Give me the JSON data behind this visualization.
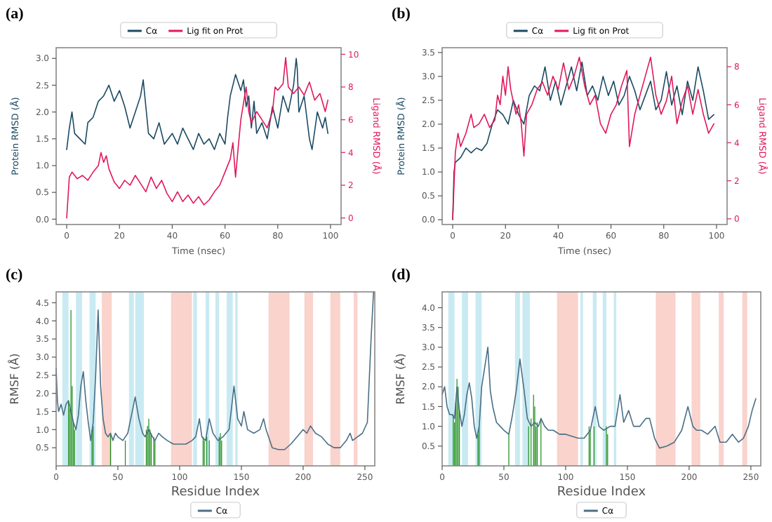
{
  "chart_data": [
    {
      "type": "line",
      "title": "(a)",
      "xlabel": "Time (nsec)",
      "ylabel": "Protein RMSD (Å)",
      "y2label": "Ligand RMSD (Å)",
      "legend": "top",
      "xlim": [
        -4,
        104
      ],
      "xticks": [
        0,
        20,
        40,
        60,
        80,
        100
      ],
      "ylim": [
        -0.1,
        3.2
      ],
      "yticks": [
        {
          "value": 0,
          "label": "0.0"
        },
        {
          "value": 0.5,
          "label": "0.5"
        },
        {
          "value": 1,
          "label": "1.0"
        },
        {
          "value": 1.5,
          "label": "1.5"
        },
        {
          "value": 2,
          "label": "2.0"
        },
        {
          "value": 2.5,
          "label": "2.5"
        },
        {
          "value": 3,
          "label": "3.0"
        }
      ],
      "y2lim": [
        -0.4,
        10.4
      ],
      "y2ticks": [
        0,
        2,
        4,
        6,
        8,
        10
      ],
      "series": [
        {
          "name": "Cα",
          "color": "#1b4a63",
          "x": [
            0,
            1,
            2,
            3,
            5,
            7,
            8,
            10,
            12,
            14,
            16,
            18,
            20,
            22,
            24,
            26,
            28,
            29,
            30,
            31,
            33,
            35,
            37,
            40,
            42,
            44,
            46,
            48,
            50,
            52,
            54,
            56,
            58,
            60,
            61,
            62,
            64,
            66,
            67,
            68,
            69,
            70,
            71,
            72,
            74,
            76,
            78,
            80,
            82,
            84,
            86,
            86.6,
            87,
            87.4,
            88,
            90,
            92,
            93,
            95,
            97,
            98,
            99
          ],
          "values": [
            1.3,
            1.7,
            2.0,
            1.6,
            1.5,
            1.4,
            1.8,
            1.9,
            2.2,
            2.3,
            2.5,
            2.2,
            2.4,
            2.1,
            1.7,
            2.0,
            2.3,
            2.6,
            2.1,
            1.6,
            1.5,
            1.8,
            1.4,
            1.6,
            1.4,
            1.7,
            1.5,
            1.3,
            1.6,
            1.4,
            1.5,
            1.3,
            1.6,
            1.4,
            1.9,
            2.3,
            2.7,
            2.4,
            2.6,
            2.1,
            2.3,
            1.7,
            2.2,
            1.6,
            1.8,
            1.5,
            2.1,
            1.7,
            2.3,
            2.0,
            2.5,
            2.8,
            3.0,
            2.8,
            2.0,
            2.3,
            1.5,
            1.3,
            2.0,
            1.7,
            1.9,
            1.6
          ]
        },
        {
          "name": "Lig fit on Prot",
          "color": "#e0195a",
          "axis": "y2",
          "x": [
            0,
            1,
            2,
            4,
            6,
            8,
            10,
            12,
            13,
            14,
            15,
            16,
            18,
            20,
            22,
            24,
            26,
            28,
            30,
            32,
            34,
            36,
            38,
            40,
            42,
            44,
            46,
            48,
            50,
            52,
            54,
            56,
            58,
            60,
            62,
            63,
            64,
            65,
            66,
            67,
            68,
            69,
            70,
            72,
            74,
            76,
            78,
            79,
            80,
            82,
            83,
            84,
            86,
            88,
            90,
            92,
            94,
            96,
            98,
            99
          ],
          "values": [
            0,
            2.5,
            2.8,
            2.4,
            2.6,
            2.3,
            2.8,
            3.2,
            4.0,
            3.4,
            3.8,
            3.0,
            2.2,
            1.8,
            2.3,
            2.0,
            2.6,
            2.1,
            1.6,
            2.5,
            1.8,
            2.3,
            1.5,
            1.0,
            1.6,
            1.0,
            1.4,
            0.9,
            1.3,
            0.8,
            1.1,
            1.6,
            2.0,
            2.8,
            3.6,
            4.6,
            2.5,
            4.3,
            6.0,
            7.0,
            8.0,
            6.5,
            5.8,
            6.5,
            6.0,
            5.5,
            6.5,
            8.0,
            7.8,
            8.2,
            9.8,
            8.0,
            7.6,
            8.0,
            7.5,
            8.3,
            7.2,
            7.6,
            6.5,
            7.2
          ]
        }
      ]
    },
    {
      "type": "line",
      "title": "(b)",
      "xlabel": "Time (nsec)",
      "ylabel": "Protein RMSD (Å)",
      "y2label": "Ligand RMSD (Å)",
      "legend": "top",
      "xlim": [
        -4,
        104
      ],
      "xticks": [
        0,
        20,
        40,
        60,
        80,
        100
      ],
      "ylim": [
        -0.1,
        3.6
      ],
      "yticks": [
        {
          "value": 0,
          "label": "0.0"
        },
        {
          "value": 0.5,
          "label": "0.5"
        },
        {
          "value": 1,
          "label": "1.0"
        },
        {
          "value": 1.5,
          "label": "1.5"
        },
        {
          "value": 2,
          "label": "2.0"
        },
        {
          "value": 2.5,
          "label": "2.5"
        },
        {
          "value": 3,
          "label": "3.0"
        },
        {
          "value": 3.5,
          "label": "3.5"
        }
      ],
      "y2lim": [
        -0.3,
        9
      ],
      "y2ticks": [
        0,
        2,
        4,
        6,
        8
      ],
      "series": [
        {
          "name": "Cα",
          "color": "#1b4a63",
          "x": [
            0,
            0.5,
            1,
            3,
            5,
            7,
            9,
            11,
            13,
            15,
            17,
            19,
            21,
            23,
            25,
            27,
            29,
            31,
            33,
            35,
            37,
            39,
            41,
            43,
            45,
            47,
            49,
            51,
            53,
            55,
            57,
            59,
            61,
            63,
            65,
            67,
            69,
            71,
            73,
            75,
            77,
            79,
            81,
            83,
            85,
            87,
            89,
            91,
            93,
            95,
            97,
            99
          ],
          "values": [
            0,
            1.0,
            1.2,
            1.3,
            1.5,
            1.4,
            1.5,
            1.45,
            1.6,
            2.0,
            2.3,
            2.2,
            2.0,
            2.5,
            2.2,
            2.0,
            2.6,
            2.8,
            2.7,
            3.2,
            2.5,
            2.9,
            2.4,
            2.8,
            3.2,
            2.7,
            3.3,
            2.6,
            2.8,
            2.5,
            3.0,
            2.6,
            2.9,
            2.4,
            2.6,
            3.0,
            2.7,
            2.3,
            2.6,
            2.9,
            2.3,
            2.5,
            3.1,
            2.4,
            2.8,
            2.2,
            2.9,
            2.5,
            3.2,
            2.7,
            2.1,
            2.2
          ]
        },
        {
          "name": "Lig fit on Prot",
          "color": "#e0195a",
          "axis": "y2",
          "x": [
            0,
            1,
            2,
            3,
            5,
            7,
            8,
            10,
            12,
            14,
            16,
            17,
            18,
            19,
            20,
            21,
            22,
            24,
            25,
            26,
            27,
            28,
            30,
            32,
            34,
            36,
            38,
            40,
            42,
            44,
            46,
            48,
            50,
            52,
            54,
            56,
            58,
            60,
            62,
            64,
            66,
            67,
            69,
            71,
            73,
            75,
            77,
            79,
            81,
            83,
            85,
            87,
            89,
            91,
            93,
            95,
            97,
            99
          ],
          "values": [
            0,
            3.5,
            4.5,
            3.8,
            4.5,
            5.5,
            4.8,
            5.0,
            5.5,
            4.8,
            5.2,
            6.5,
            6.0,
            7.5,
            6.5,
            8.0,
            6.8,
            5.5,
            6.0,
            5.0,
            3.3,
            5.5,
            6.0,
            6.8,
            7.2,
            6.5,
            7.5,
            6.8,
            8.2,
            6.8,
            7.5,
            8.5,
            7.0,
            6.0,
            6.5,
            5.0,
            4.5,
            5.5,
            6.0,
            7.0,
            7.8,
            3.8,
            5.5,
            6.5,
            7.5,
            8.5,
            6.5,
            5.5,
            6.2,
            7.5,
            5.0,
            6.2,
            7.0,
            5.5,
            6.8,
            5.5,
            4.5,
            5.0
          ]
        }
      ]
    },
    {
      "type": "line",
      "title": "(c)",
      "xlabel": "Residue Index",
      "ylabel": "RMSF (Å)",
      "legend": "bottom",
      "xlim": [
        0,
        258
      ],
      "xticks": [
        0,
        50,
        100,
        150,
        200,
        250
      ],
      "ylim": [
        0,
        4.8
      ],
      "yticks": [
        0.5,
        {
          "value": 1,
          "label": "1.0"
        },
        1.5,
        {
          "value": 2,
          "label": "2.0"
        },
        2.5,
        {
          "value": 3,
          "label": "3.0"
        },
        3.5,
        {
          "value": 4,
          "label": "4.0"
        },
        4.5
      ],
      "bands": [
        {
          "axis": "x",
          "from": 5,
          "to": 10,
          "color": "#c9eaf2"
        },
        {
          "axis": "x",
          "from": 16,
          "to": 21,
          "color": "#c9eaf2"
        },
        {
          "axis": "x",
          "from": 27,
          "to": 32,
          "color": "#c9eaf2"
        },
        {
          "axis": "x",
          "from": 37,
          "to": 45,
          "color": "#f9d3cc"
        },
        {
          "axis": "x",
          "from": 59,
          "to": 63,
          "color": "#c9eaf2"
        },
        {
          "axis": "x",
          "from": 64,
          "to": 71,
          "color": "#c9eaf2"
        },
        {
          "axis": "x",
          "from": 93,
          "to": 110,
          "color": "#f9d3cc"
        },
        {
          "axis": "x",
          "from": 111,
          "to": 114,
          "color": "#c9eaf2"
        },
        {
          "axis": "x",
          "from": 121,
          "to": 124,
          "color": "#c9eaf2"
        },
        {
          "axis": "x",
          "from": 129,
          "to": 132,
          "color": "#c9eaf2"
        },
        {
          "axis": "x",
          "from": 138,
          "to": 143,
          "color": "#c9eaf2"
        },
        {
          "axis": "x",
          "from": 145,
          "to": 147,
          "color": "#c9eaf2"
        },
        {
          "axis": "x",
          "from": 172,
          "to": 189,
          "color": "#f9d3cc"
        },
        {
          "axis": "x",
          "from": 201,
          "to": 208,
          "color": "#f9d3cc"
        },
        {
          "axis": "x",
          "from": 222,
          "to": 230,
          "color": "#f9d3cc"
        },
        {
          "axis": "x",
          "from": 241,
          "to": 244,
          "color": "#f9d3cc"
        }
      ],
      "series": [
        {
          "type": "bar",
          "color": "#1a8c1a",
          "x": [
            10,
            11,
            12,
            13,
            14,
            15,
            29,
            30,
            44,
            56,
            73,
            74,
            75,
            76,
            77,
            79,
            80,
            119,
            120,
            122,
            124,
            132,
            133,
            134
          ],
          "values": [
            1.8,
            1.6,
            4.3,
            2.2,
            1.2,
            1.0,
            1.0,
            1.1,
            0.9,
            0.7,
            1.0,
            1.1,
            1.3,
            1.0,
            0.9,
            0.8,
            0.7,
            0.8,
            0.7,
            0.8,
            0.7,
            0.8,
            0.9,
            0.7
          ]
        },
        {
          "name": "Cα",
          "color": "#4a6f86",
          "x": [
            0,
            1,
            2,
            4,
            6,
            8,
            10,
            12,
            14,
            16,
            18,
            20,
            22,
            24,
            26,
            28,
            30,
            32,
            34,
            36,
            38,
            40,
            42,
            44,
            46,
            48,
            50,
            54,
            58,
            61,
            64,
            67,
            70,
            72,
            75,
            78,
            80,
            83,
            86,
            90,
            95,
            100,
            105,
            110,
            113,
            116,
            118,
            121,
            124,
            127,
            131,
            135,
            140,
            144,
            147,
            150,
            152,
            155,
            160,
            165,
            168,
            170,
            175,
            180,
            185,
            190,
            195,
            200,
            203,
            206,
            210,
            215,
            220,
            225,
            230,
            235,
            238,
            240,
            244,
            248,
            252,
            255,
            257
          ],
          "values": [
            2.7,
            1.8,
            1.5,
            1.7,
            1.4,
            1.7,
            1.8,
            1.5,
            1.2,
            1.0,
            1.4,
            2.2,
            2.6,
            1.8,
            1.2,
            0.7,
            1.2,
            2.5,
            4.3,
            2.2,
            1.3,
            0.9,
            0.8,
            0.9,
            0.7,
            0.9,
            0.8,
            0.7,
            0.9,
            1.4,
            1.9,
            1.3,
            0.9,
            0.8,
            1.0,
            0.8,
            0.7,
            0.9,
            0.8,
            0.7,
            0.6,
            0.6,
            0.6,
            0.7,
            0.8,
            1.3,
            0.8,
            0.7,
            1.3,
            0.9,
            0.7,
            0.8,
            1.0,
            2.2,
            1.3,
            1.1,
            1.5,
            1.0,
            0.9,
            1.0,
            1.3,
            1.0,
            0.5,
            0.45,
            0.45,
            0.6,
            0.8,
            1.0,
            0.9,
            1.1,
            0.9,
            0.8,
            0.6,
            0.5,
            0.5,
            0.7,
            0.9,
            0.7,
            0.8,
            0.9,
            1.2,
            3.5,
            4.8
          ]
        }
      ]
    },
    {
      "type": "line",
      "title": "(d)",
      "xlabel": "Residue Index",
      "ylabel": "RMSF (Å)",
      "legend": "bottom",
      "xlim": [
        0,
        258
      ],
      "xticks": [
        0,
        50,
        100,
        150,
        200,
        250
      ],
      "ylim": [
        0,
        4.4
      ],
      "yticks": [
        0.5,
        {
          "value": 1,
          "label": "1.0"
        },
        1.5,
        {
          "value": 2,
          "label": "2.0"
        },
        2.5,
        {
          "value": 3,
          "label": "3.0"
        },
        3.5,
        {
          "value": 4,
          "label": "4.0"
        }
      ],
      "bands": [
        {
          "axis": "x",
          "from": 5,
          "to": 10,
          "color": "#c9eaf2"
        },
        {
          "axis": "x",
          "from": 16,
          "to": 21,
          "color": "#c9eaf2"
        },
        {
          "axis": "x",
          "from": 27,
          "to": 32,
          "color": "#c9eaf2"
        },
        {
          "axis": "x",
          "from": 59,
          "to": 63,
          "color": "#c9eaf2"
        },
        {
          "axis": "x",
          "from": 65,
          "to": 71,
          "color": "#c9eaf2"
        },
        {
          "axis": "x",
          "from": 93,
          "to": 110,
          "color": "#f9d3cc"
        },
        {
          "axis": "x",
          "from": 112,
          "to": 114,
          "color": "#c9eaf2"
        },
        {
          "axis": "x",
          "from": 122,
          "to": 125,
          "color": "#c9eaf2"
        },
        {
          "axis": "x",
          "from": 130,
          "to": 133,
          "color": "#c9eaf2"
        },
        {
          "axis": "x",
          "from": 139,
          "to": 141,
          "color": "#c9eaf2"
        },
        {
          "axis": "x",
          "from": 173,
          "to": 189,
          "color": "#f9d3cc"
        },
        {
          "axis": "x",
          "from": 202,
          "to": 209,
          "color": "#f9d3cc"
        },
        {
          "axis": "x",
          "from": 224,
          "to": 228,
          "color": "#f9d3cc"
        },
        {
          "axis": "x",
          "from": 243,
          "to": 247,
          "color": "#f9d3cc"
        }
      ],
      "series": [
        {
          "type": "bar",
          "color": "#1a8c1a",
          "x": [
            9,
            10,
            11,
            12,
            13,
            14,
            29,
            30,
            54,
            70,
            72,
            74,
            75,
            76,
            77,
            80,
            119,
            120,
            123,
            133,
            134
          ],
          "values": [
            1.3,
            1.1,
            1.6,
            2.2,
            2.0,
            1.4,
            0.8,
            1.0,
            0.8,
            1.0,
            1.2,
            1.8,
            1.5,
            1.0,
            1.1,
            1.2,
            1.0,
            0.9,
            1.0,
            1.0,
            0.8
          ]
        },
        {
          "name": "Cα",
          "color": "#4a6f86",
          "x": [
            0,
            2,
            4,
            6,
            8,
            10,
            12,
            14,
            16,
            18,
            20,
            22,
            24,
            26,
            28,
            30,
            32,
            35,
            37,
            39,
            41,
            44,
            47,
            50,
            54,
            57,
            60,
            63,
            66,
            69,
            72,
            75,
            78,
            80,
            83,
            86,
            90,
            95,
            100,
            105,
            110,
            115,
            120,
            124,
            127,
            131,
            136,
            140,
            144,
            147,
            151,
            155,
            160,
            165,
            168,
            172,
            176,
            182,
            188,
            194,
            199,
            203,
            206,
            210,
            215,
            221,
            225,
            230,
            235,
            240,
            244,
            248,
            251,
            254
          ],
          "values": [
            1.8,
            2.0,
            1.5,
            1.3,
            1.3,
            1.2,
            2.0,
            1.4,
            1.0,
            1.3,
            1.8,
            2.1,
            1.7,
            1.0,
            0.7,
            1.0,
            2.0,
            null,
            3.0,
            1.9,
            1.5,
            1.1,
            1.0,
            0.9,
            0.8,
            1.3,
            1.9,
            2.7,
            2.0,
            1.2,
            1.0,
            1.1,
            1.0,
            1.2,
            1.0,
            0.9,
            0.9,
            0.8,
            0.8,
            0.75,
            0.7,
            0.7,
            0.9,
            1.5,
            1.0,
            0.9,
            1.0,
            1.0,
            1.8,
            1.1,
            1.4,
            1.0,
            1.0,
            1.2,
            1.2,
            0.7,
            0.45,
            0.5,
            0.6,
            0.9,
            1.5,
            1.0,
            0.9,
            0.9,
            0.8,
            1.0,
            0.6,
            0.6,
            0.8,
            0.6,
            0.7,
            1.0,
            1.4,
            1.7
          ]
        }
      ]
    }
  ]
}
